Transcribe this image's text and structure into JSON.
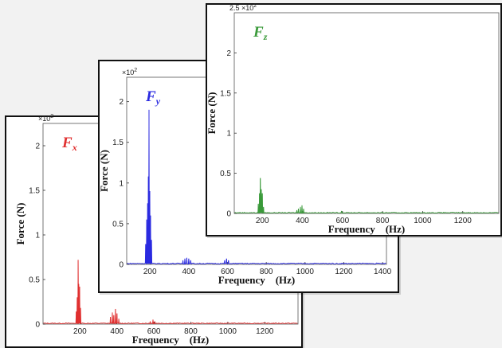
{
  "chart_data": [
    {
      "type": "line",
      "series_name": "Fx",
      "series_label": {
        "main": "F",
        "sub": "x"
      },
      "color": "#e03030",
      "xlabel": "Frequency    (Hz)",
      "ylabel": "Force (N)",
      "y_multiplier": {
        "base": "×10",
        "exp": "2"
      },
      "xlim": [
        0,
        1380
      ],
      "ylim": [
        0,
        2.25
      ],
      "xticks": [
        200,
        400,
        600,
        800,
        1000,
        1200
      ],
      "xtick_labels": [
        "200",
        "400",
        "600",
        "800",
        "1000",
        "1200"
      ],
      "yticks": [
        0,
        0.5,
        1,
        1.5,
        2
      ],
      "ytick_labels": [
        "0",
        "0.5",
        "1",
        "1.5",
        "2"
      ],
      "peaks": [
        {
          "x": 180,
          "y": 0.14
        },
        {
          "x": 185,
          "y": 0.3
        },
        {
          "x": 190,
          "y": 0.72
        },
        {
          "x": 193,
          "y": 0.45
        },
        {
          "x": 198,
          "y": 0.42
        },
        {
          "x": 203,
          "y": 0.18
        },
        {
          "x": 365,
          "y": 0.08
        },
        {
          "x": 375,
          "y": 0.13
        },
        {
          "x": 383,
          "y": 0.1
        },
        {
          "x": 392,
          "y": 0.17
        },
        {
          "x": 400,
          "y": 0.12
        },
        {
          "x": 410,
          "y": 0.06
        },
        {
          "x": 580,
          "y": 0.03
        },
        {
          "x": 595,
          "y": 0.05
        },
        {
          "x": 605,
          "y": 0.03
        }
      ],
      "noise_floor": 0.01
    },
    {
      "type": "line",
      "series_name": "Fy",
      "series_label": {
        "main": "F",
        "sub": "y"
      },
      "color": "#2a2ae0",
      "xlabel": "Frequency    (Hz)",
      "ylabel": "Force (N)",
      "y_multiplier": {
        "base": "×10",
        "exp": "2"
      },
      "xlim": [
        80,
        1420
      ],
      "ylim": [
        0,
        2.3
      ],
      "xticks": [
        200,
        400,
        600,
        800,
        1000,
        1200,
        1400
      ],
      "xtick_labels": [
        "200",
        "400",
        "600",
        "800",
        "1000",
        "1200",
        "1400"
      ],
      "yticks": [
        0,
        0.5,
        1,
        1.5,
        2
      ],
      "ytick_labels": [
        "0",
        "0.5",
        "1",
        "1.5",
        "2"
      ],
      "peaks": [
        {
          "x": 178,
          "y": 0.25
        },
        {
          "x": 183,
          "y": 0.55
        },
        {
          "x": 188,
          "y": 0.75
        },
        {
          "x": 192,
          "y": 1.08
        },
        {
          "x": 195,
          "y": 1.9
        },
        {
          "x": 199,
          "y": 0.9
        },
        {
          "x": 203,
          "y": 0.6
        },
        {
          "x": 208,
          "y": 0.3
        },
        {
          "x": 370,
          "y": 0.05
        },
        {
          "x": 380,
          "y": 0.07
        },
        {
          "x": 390,
          "y": 0.08
        },
        {
          "x": 400,
          "y": 0.07
        },
        {
          "x": 410,
          "y": 0.05
        },
        {
          "x": 585,
          "y": 0.05
        },
        {
          "x": 595,
          "y": 0.07
        },
        {
          "x": 605,
          "y": 0.05
        }
      ],
      "noise_floor": 0.012
    },
    {
      "type": "line",
      "series_name": "Fz",
      "series_label": {
        "main": "F",
        "sub": "z"
      },
      "color": "#3a9a3a",
      "xlabel": "Frequency    (Hz)",
      "ylabel": "Force (N)",
      "y_multiplier": {
        "base": "2.5 ×10",
        "exp": "2"
      },
      "xlim": [
        60,
        1380
      ],
      "ylim": [
        0,
        2.5
      ],
      "xticks": [
        200,
        400,
        600,
        800,
        1000,
        1200
      ],
      "xtick_labels": [
        "200",
        "400",
        "600",
        "800",
        "1000",
        "1200"
      ],
      "yticks": [
        0,
        0.5,
        1,
        1.5,
        2
      ],
      "ytick_labels": [
        "0",
        "0.5",
        "1",
        "1.5",
        "2"
      ],
      "peaks": [
        {
          "x": 180,
          "y": 0.12
        },
        {
          "x": 186,
          "y": 0.25
        },
        {
          "x": 190,
          "y": 0.44
        },
        {
          "x": 195,
          "y": 0.3
        },
        {
          "x": 200,
          "y": 0.25
        },
        {
          "x": 206,
          "y": 0.08
        },
        {
          "x": 372,
          "y": 0.04
        },
        {
          "x": 380,
          "y": 0.06
        },
        {
          "x": 390,
          "y": 0.08
        },
        {
          "x": 398,
          "y": 0.1
        },
        {
          "x": 406,
          "y": 0.06
        },
        {
          "x": 595,
          "y": 0.03
        }
      ],
      "noise_floor": 0.01
    }
  ]
}
